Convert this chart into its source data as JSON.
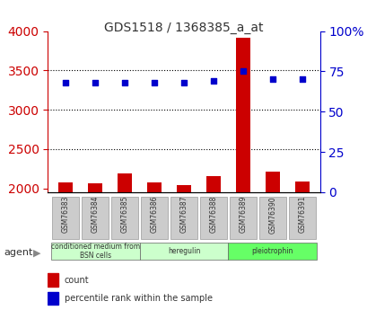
{
  "title": "GDS1518 / 1368385_a_at",
  "samples": [
    "GSM76383",
    "GSM76384",
    "GSM76385",
    "GSM76386",
    "GSM76387",
    "GSM76388",
    "GSM76389",
    "GSM76390",
    "GSM76391"
  ],
  "counts": [
    2080,
    2060,
    2190,
    2080,
    2045,
    2160,
    3920,
    2210,
    2090
  ],
  "percentiles": [
    68,
    68,
    68,
    68,
    68,
    69,
    75,
    70,
    70
  ],
  "ylim_left": [
    1950,
    4000
  ],
  "ylim_right": [
    0,
    100
  ],
  "yticks_left": [
    2000,
    2500,
    3000,
    3500,
    4000
  ],
  "yticks_right": [
    0,
    25,
    50,
    75,
    100
  ],
  "groups": [
    {
      "label": "conditioned medium from\nBSN cells",
      "start": 0,
      "end": 3,
      "color": "#ccffcc"
    },
    {
      "label": "heregulin",
      "start": 3,
      "end": 6,
      "color": "#ccffcc"
    },
    {
      "label": "pleiotrophin",
      "start": 6,
      "end": 9,
      "color": "#66ff66"
    }
  ],
  "bar_color": "#cc0000",
  "dot_color": "#0000cc",
  "axis_left_color": "#cc0000",
  "axis_right_color": "#0000cc",
  "tick_label_color_left": "#cc0000",
  "tick_label_color_right": "#0000cc",
  "grid_color": "#000000",
  "sample_box_color": "#cccccc",
  "legend_count_color": "#cc0000",
  "legend_pct_color": "#0000cc"
}
